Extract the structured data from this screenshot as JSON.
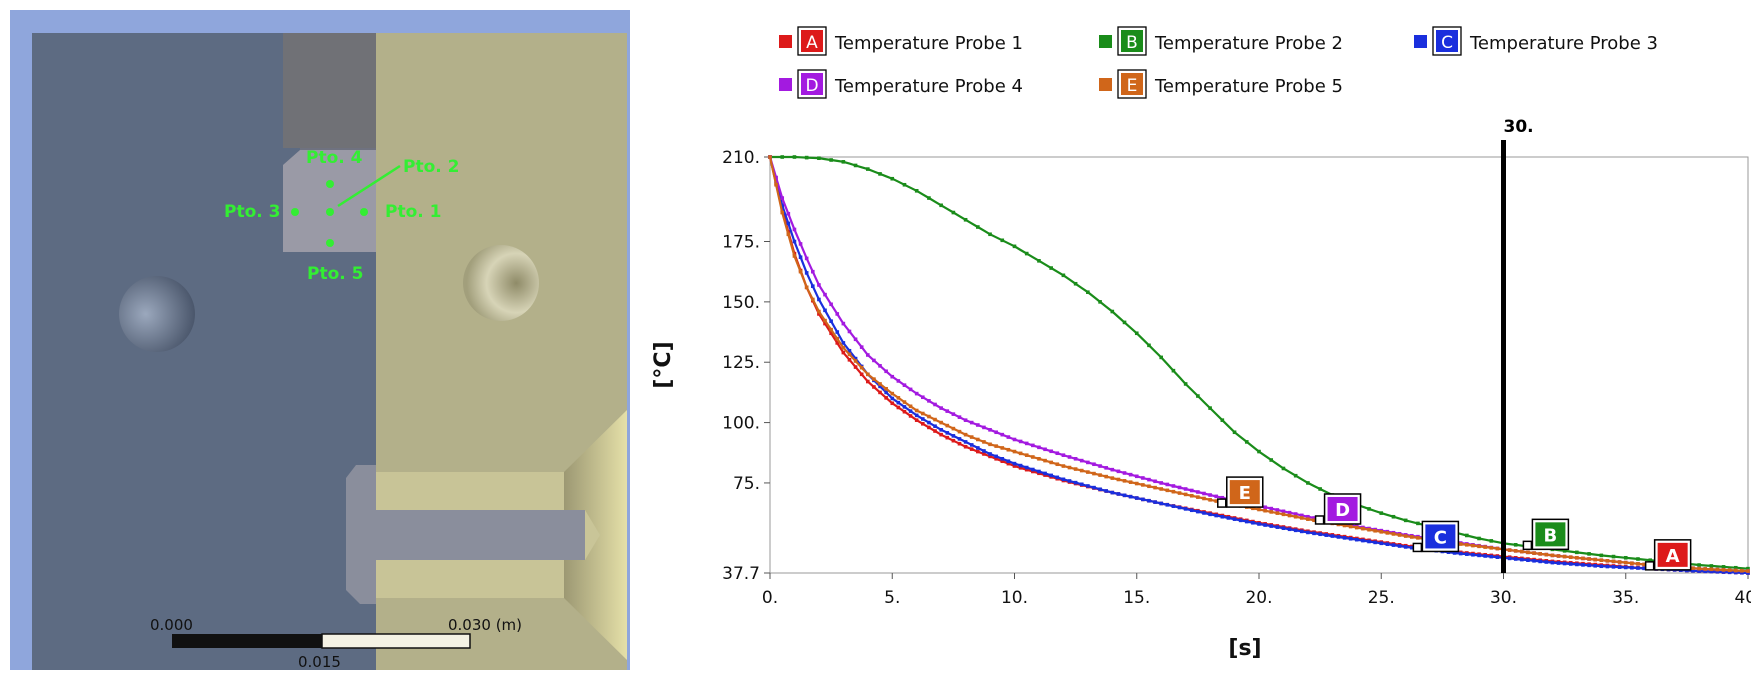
{
  "model": {
    "probes": [
      {
        "label": "Pto. 1"
      },
      {
        "label": "Pto. 2"
      },
      {
        "label": "Pto. 3"
      },
      {
        "label": "Pto. 4"
      },
      {
        "label": "Pto. 5"
      }
    ],
    "scale_bar": {
      "left_label": "0.000",
      "right_label": "0.030 (m)",
      "mid_label": "0.015"
    },
    "colors": {
      "frame": "#8fa6dc",
      "left_part": "#5d6b82",
      "right_part": "#b3b08a",
      "probe": "#33ee33",
      "insert": "#8a8e9c"
    }
  },
  "chart_data": {
    "type": "line",
    "title": "",
    "xlabel": "[s]",
    "ylabel": "[°C]",
    "xlim": [
      0,
      40
    ],
    "ylim": [
      37.7,
      210
    ],
    "x_ticks": [
      "0.",
      "5.",
      "10.",
      "15.",
      "20.",
      "25.",
      "30.",
      "35.",
      "40."
    ],
    "y_ticks": [
      {
        "label": "210.",
        "value": 210
      },
      {
        "label": "175.",
        "value": 175
      },
      {
        "label": "150.",
        "value": 150
      },
      {
        "label": "125.",
        "value": 125
      },
      {
        "label": "100.",
        "value": 100
      },
      {
        "label": "75.",
        "value": 75
      },
      {
        "label": "37.7",
        "value": 37.7
      }
    ],
    "cursor": {
      "x": 30,
      "label": "30."
    },
    "legend_position": "top",
    "series": [
      {
        "name": "Temperature Probe 1",
        "letter": "A",
        "color": "#dd1a1a",
        "marker_x": 37,
        "points": [
          [
            0,
            210
          ],
          [
            0.5,
            188
          ],
          [
            1,
            170
          ],
          [
            1.5,
            156
          ],
          [
            2,
            145
          ],
          [
            3,
            129
          ],
          [
            4,
            117
          ],
          [
            5,
            108
          ],
          [
            6,
            101
          ],
          [
            7,
            95
          ],
          [
            8,
            90
          ],
          [
            9,
            86
          ],
          [
            10,
            82
          ],
          [
            12,
            76
          ],
          [
            14,
            71
          ],
          [
            16,
            66.5
          ],
          [
            18,
            62.5
          ],
          [
            20,
            58.5
          ],
          [
            22,
            55
          ],
          [
            24,
            52
          ],
          [
            26,
            49
          ],
          [
            28,
            46.5
          ],
          [
            30,
            44.5
          ],
          [
            32,
            42.5
          ],
          [
            34,
            41
          ],
          [
            36,
            39.5
          ],
          [
            38,
            38.5
          ],
          [
            40,
            37.7
          ]
        ]
      },
      {
        "name": "Temperature Probe 2",
        "letter": "B",
        "color": "#1a8c1a",
        "marker_x": 32,
        "points": [
          [
            0,
            210
          ],
          [
            1,
            210
          ],
          [
            2,
            209.5
          ],
          [
            3,
            208
          ],
          [
            4,
            205
          ],
          [
            5,
            201
          ],
          [
            6,
            196
          ],
          [
            7,
            190
          ],
          [
            8,
            184
          ],
          [
            9,
            178
          ],
          [
            10,
            173
          ],
          [
            11,
            167
          ],
          [
            12,
            161
          ],
          [
            13,
            154
          ],
          [
            14,
            146
          ],
          [
            15,
            137
          ],
          [
            16,
            127
          ],
          [
            17,
            116
          ],
          [
            18,
            106
          ],
          [
            19,
            96
          ],
          [
            20,
            88
          ],
          [
            21,
            81
          ],
          [
            22,
            75
          ],
          [
            23,
            70
          ],
          [
            24,
            66
          ],
          [
            25,
            62.5
          ],
          [
            26,
            59.5
          ],
          [
            27,
            57
          ],
          [
            28,
            54.5
          ],
          [
            29,
            52
          ],
          [
            30,
            50
          ],
          [
            32,
            47.5
          ],
          [
            34,
            45
          ],
          [
            36,
            43
          ],
          [
            38,
            41
          ],
          [
            40,
            39.5
          ]
        ]
      },
      {
        "name": "Temperature Probe 3",
        "letter": "C",
        "color": "#1a2fdd",
        "marker_x": 27.5,
        "points": [
          [
            0,
            210
          ],
          [
            0.5,
            190
          ],
          [
            1,
            175
          ],
          [
            1.5,
            162
          ],
          [
            2,
            151
          ],
          [
            3,
            133
          ],
          [
            4,
            120
          ],
          [
            5,
            110
          ],
          [
            6,
            103
          ],
          [
            7,
            97
          ],
          [
            8,
            92
          ],
          [
            9,
            87
          ],
          [
            10,
            83
          ],
          [
            12,
            76.5
          ],
          [
            14,
            71
          ],
          [
            16,
            66.5
          ],
          [
            18,
            62
          ],
          [
            20,
            58
          ],
          [
            22,
            54.5
          ],
          [
            24,
            51.5
          ],
          [
            26,
            48.5
          ],
          [
            28,
            46
          ],
          [
            30,
            44
          ],
          [
            32,
            42
          ],
          [
            34,
            40.5
          ],
          [
            36,
            39.5
          ],
          [
            38,
            38.5
          ],
          [
            40,
            37.7
          ]
        ]
      },
      {
        "name": "Temperature Probe 4",
        "letter": "D",
        "color": "#a31ae0",
        "marker_x": 23.5,
        "points": [
          [
            0,
            210
          ],
          [
            0.5,
            193
          ],
          [
            1,
            180
          ],
          [
            1.5,
            168
          ],
          [
            2,
            157
          ],
          [
            3,
            141
          ],
          [
            4,
            128
          ],
          [
            5,
            119
          ],
          [
            6,
            112
          ],
          [
            7,
            106
          ],
          [
            8,
            101
          ],
          [
            9,
            97
          ],
          [
            10,
            93
          ],
          [
            12,
            86.5
          ],
          [
            14,
            80.5
          ],
          [
            16,
            75
          ],
          [
            18,
            70
          ],
          [
            20,
            65.5
          ],
          [
            22,
            61
          ],
          [
            24,
            57
          ],
          [
            26,
            53.5
          ],
          [
            28,
            50.5
          ],
          [
            30,
            47.5
          ],
          [
            32,
            45
          ],
          [
            34,
            43
          ],
          [
            36,
            41
          ],
          [
            38,
            39.5
          ],
          [
            40,
            38.5
          ]
        ]
      },
      {
        "name": "Temperature Probe 5",
        "letter": "E",
        "color": "#d0661a",
        "marker_x": 19.5,
        "points": [
          [
            0,
            210
          ],
          [
            0.5,
            187
          ],
          [
            1,
            169
          ],
          [
            1.5,
            156
          ],
          [
            2,
            146
          ],
          [
            3,
            131
          ],
          [
            4,
            120
          ],
          [
            5,
            112
          ],
          [
            6,
            105
          ],
          [
            7,
            100
          ],
          [
            8,
            95
          ],
          [
            9,
            91
          ],
          [
            10,
            88
          ],
          [
            12,
            82
          ],
          [
            14,
            77
          ],
          [
            16,
            72.5
          ],
          [
            18,
            68
          ],
          [
            20,
            64
          ],
          [
            22,
            60
          ],
          [
            24,
            56.5
          ],
          [
            26,
            53
          ],
          [
            28,
            50
          ],
          [
            30,
            47.5
          ],
          [
            32,
            45
          ],
          [
            34,
            43
          ],
          [
            36,
            41
          ],
          [
            38,
            39.5
          ],
          [
            40,
            38.5
          ]
        ]
      }
    ]
  }
}
